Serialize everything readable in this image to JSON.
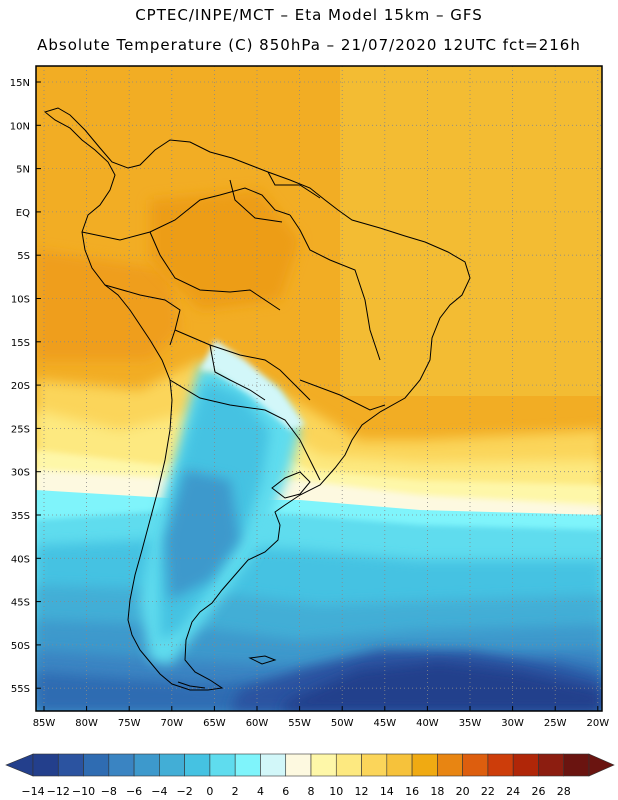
{
  "header": {
    "line1": "CPTEC/INPE/MCT –  Eta Model 15km – GFS",
    "line2": "Absolute Temperature (C) 850hPa – 21/07/2020 12UTC fct=216h"
  },
  "map": {
    "lat_labels": [
      "15N",
      "10N",
      "5N",
      "EQ",
      "5S",
      "10S",
      "15S",
      "20S",
      "25S",
      "30S",
      "35S",
      "40S",
      "45S",
      "50S",
      "55S"
    ],
    "lon_labels": [
      "85W",
      "80W",
      "75W",
      "70W",
      "65W",
      "60W",
      "55W",
      "50W",
      "45W",
      "40W",
      "35W",
      "30W",
      "25W",
      "20W"
    ]
  },
  "colorbar": {
    "labels": [
      "-14",
      "-12",
      "-10",
      "-8",
      "-6",
      "-4",
      "-2",
      "0",
      "2",
      "4",
      "6",
      "8",
      "10",
      "12",
      "14",
      "16",
      "18",
      "20",
      "22",
      "24",
      "26",
      "28"
    ],
    "colors": [
      "#233f8c",
      "#2b53a0",
      "#2f6cb2",
      "#3a84c2",
      "#3d99cc",
      "#42aed6",
      "#45c2e2",
      "#5fdcee",
      "#7ff4fb",
      "#d2f7f9",
      "#fdf9e0",
      "#fef7a8",
      "#fde980",
      "#fbd55a",
      "#f6c23b",
      "#f0aa12",
      "#e88512",
      "#dd5e0e",
      "#cd3d0a",
      "#b02608",
      "#8c1d10",
      "#6a1410"
    ]
  }
}
